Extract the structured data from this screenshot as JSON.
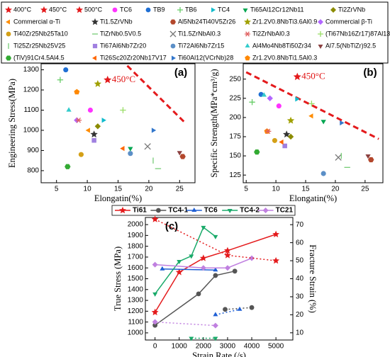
{
  "legend": [
    {
      "name": "400°C",
      "marker": "star",
      "color": "#e41a1c"
    },
    {
      "name": "450°C",
      "marker": "star",
      "color": "#e41a1c"
    },
    {
      "name": "500°C",
      "marker": "star",
      "color": "#e41a1c"
    },
    {
      "name": "TC6",
      "marker": "circle",
      "color": "#ff33ff"
    },
    {
      "name": "TB9",
      "marker": "circle",
      "color": "#1f6fd4"
    },
    {
      "name": "TB6",
      "marker": "plus",
      "color": "#66cc66"
    },
    {
      "name": "TC4",
      "marker": "tri-right",
      "color": "#11bbcc"
    },
    {
      "name": "Ti65Al12Cr12Nb11",
      "marker": "tri-down",
      "color": "#00a650"
    },
    {
      "name": "Ti2ZrVNb",
      "marker": "diamond",
      "color": "#8b8b00"
    },
    {
      "name": "Commercial α-Ti",
      "marker": "tri-left",
      "color": "#ff8c00"
    },
    {
      "name": "Ti1.5ZrVNb",
      "marker": "star",
      "color": "#333333"
    },
    {
      "name": "Al5Nb24Ti40V5Zr26",
      "marker": "hexagon",
      "color": "#b3472c"
    },
    {
      "name": "Zr1.2V0.8NbTi3.6Al0.9",
      "marker": "star",
      "color": "#a0a000"
    },
    {
      "name": "Commercial β-Ti",
      "marker": "diamond",
      "color": "#b266ff"
    },
    {
      "name": "Ti40Zr25Nb25Ta10",
      "marker": "circle",
      "color": "#d4a017"
    },
    {
      "name": "TiZrNb0.5V0.5",
      "marker": "hline",
      "color": "#77cc77"
    },
    {
      "name": "Ti1.5ZrNbAl0.3",
      "marker": "x",
      "color": "#777777"
    },
    {
      "name": "Ti2ZrNbAl0.3",
      "marker": "asterisk",
      "color": "#e06060"
    },
    {
      "name": "(Ti67Nb16Zr17)87Al13",
      "marker": "plus",
      "color": "#99dd66"
    },
    {
      "name": "Ti25Zr25Nb25V25",
      "marker": "pipe",
      "color": "#77cc77"
    },
    {
      "name": "Ti67Al6Nb7Zr20",
      "marker": "square",
      "color": "#a080e0"
    },
    {
      "name": "Ti72Al6Nb7Zr15",
      "marker": "circle",
      "color": "#5b8fc7"
    },
    {
      "name": "Al4Mo4Nb8Ti50Zr34",
      "marker": "tri-up",
      "color": "#33cccc"
    },
    {
      "name": "Al7.5(NbTiZr)92.5",
      "marker": "tri-down",
      "color": "#8b4040"
    },
    {
      "name": "(TiV)91Cr4.5Al4.5",
      "marker": "hexagon",
      "color": "#33aa33"
    },
    {
      "name": "Ti26Sc20Zr20Nb17V17",
      "marker": "tri-left",
      "color": "#ff6600"
    },
    {
      "name": "Ti60Al12(VCrNb)28",
      "marker": "tri-right",
      "color": "#3377cc"
    },
    {
      "name": "Zr1.2V0.8NbTi1.5Al0.3",
      "marker": "pentagon",
      "color": "#ff8800"
    }
  ],
  "chart_data": [
    {
      "type": "scatter",
      "label": "(a)",
      "x_label": "Elongatin(%)",
      "y_label": "Engineering Stress(MPa)",
      "xlim": [
        2.5,
        27.5
      ],
      "xticks": [
        5,
        10,
        15,
        20,
        25
      ],
      "ylim": [
        740,
        1330
      ],
      "yticks": [
        800,
        900,
        1000,
        1100,
        1200,
        1300
      ],
      "annotation": {
        "text": "450°C",
        "x": 13.3,
        "y": 1250,
        "marker": "star",
        "color": "#e41a1c"
      },
      "trend": {
        "x": [
          16.5,
          25.8
        ],
        "y": [
          1320,
          1040
        ],
        "color": "#e41a1c"
      },
      "points": [
        {
          "x": 6.5,
          "y": 1300,
          "marker": "circle",
          "color": "#1f6fd4"
        },
        {
          "x": 5.6,
          "y": 1250,
          "marker": "plus",
          "color": "#66cc66"
        },
        {
          "x": 11.7,
          "y": 1230,
          "marker": "star",
          "color": "#a0a000"
        },
        {
          "x": 8.3,
          "y": 1190,
          "marker": "pentagon",
          "color": "#ff8800"
        },
        {
          "x": 7,
          "y": 1100,
          "marker": "tri-up",
          "color": "#33cccc"
        },
        {
          "x": 10.5,
          "y": 1100,
          "marker": "circle",
          "color": "#ff33ff"
        },
        {
          "x": 15.8,
          "y": 1100,
          "marker": "plus",
          "color": "#99dd66"
        },
        {
          "x": 12.6,
          "y": 1050,
          "marker": "tri-right",
          "color": "#11bbcc"
        },
        {
          "x": 8.3,
          "y": 1050,
          "marker": "diamond",
          "color": "#b266ff"
        },
        {
          "x": 8.6,
          "y": 1050,
          "marker": "asterisk",
          "color": "#e06060"
        },
        {
          "x": 10.2,
          "y": 1000,
          "marker": "tri-left",
          "color": "#ff8c00"
        },
        {
          "x": 11.7,
          "y": 1020,
          "marker": "diamond",
          "color": "#8b8b00"
        },
        {
          "x": 11.1,
          "y": 980,
          "marker": "star",
          "color": "#333333"
        },
        {
          "x": 11.1,
          "y": 950,
          "marker": "square",
          "color": "#a080e0"
        },
        {
          "x": 20.7,
          "y": 1000,
          "marker": "tri-right",
          "color": "#3377cc"
        },
        {
          "x": 19.8,
          "y": 920,
          "marker": "x",
          "color": "#777777"
        },
        {
          "x": 9,
          "y": 880,
          "marker": "circle",
          "color": "#d4a017"
        },
        {
          "x": 15.8,
          "y": 910,
          "marker": "tri-left",
          "color": "#ff6600"
        },
        {
          "x": 17,
          "y": 910,
          "marker": "tri-down",
          "color": "#00a650"
        },
        {
          "x": 17,
          "y": 885,
          "marker": "circle",
          "color": "#5b8fc7"
        },
        {
          "x": 20.7,
          "y": 850,
          "marker": "pipe",
          "color": "#77cc77"
        },
        {
          "x": 21.5,
          "y": 810,
          "marker": "hline",
          "color": "#77cc77"
        },
        {
          "x": 25,
          "y": 890,
          "marker": "tri-down",
          "color": "#8b4040"
        },
        {
          "x": 25.5,
          "y": 870,
          "marker": "hexagon",
          "color": "#b3472c"
        },
        {
          "x": 6.8,
          "y": 820,
          "marker": "hexagon",
          "color": "#33aa33"
        }
      ]
    },
    {
      "type": "scatter",
      "label": "(b)",
      "x_label": "Elongatin(%)",
      "y_label": "Specific Strength(MPa*cm³/g)",
      "xlim": [
        4.5,
        28
      ],
      "xticks": [
        5,
        10,
        15,
        20,
        25
      ],
      "ylim": [
        115,
        270
      ],
      "yticks": [
        125,
        150,
        175,
        200,
        225,
        250
      ],
      "annotation": {
        "text": "450°C",
        "x": 13.6,
        "y": 253,
        "marker": "star",
        "color": "#e41a1c"
      },
      "trend": {
        "x": [
          5,
          27.3
        ],
        "y": [
          259,
          172
        ],
        "color": "#e41a1c"
      },
      "points": [
        {
          "x": 7.5,
          "y": 230,
          "marker": "circle",
          "color": "#1f6fd4"
        },
        {
          "x": 8,
          "y": 229,
          "marker": "tri-up",
          "color": "#33cccc"
        },
        {
          "x": 9,
          "y": 225,
          "marker": "diamond",
          "color": "#b266ff"
        },
        {
          "x": 10.5,
          "y": 215,
          "marker": "circle",
          "color": "#ff33ff"
        },
        {
          "x": 13.5,
          "y": 224,
          "marker": "tri-right",
          "color": "#11bbcc"
        },
        {
          "x": 6,
          "y": 220,
          "marker": "plus",
          "color": "#66cc66"
        },
        {
          "x": 16,
          "y": 218,
          "marker": "plus",
          "color": "#99dd66"
        },
        {
          "x": 18,
          "y": 195,
          "marker": "tri-down",
          "color": "#00a650"
        },
        {
          "x": 16,
          "y": 202,
          "marker": "tri-left",
          "color": "#ff8c00"
        },
        {
          "x": 21,
          "y": 193,
          "marker": "tri-right",
          "color": "#3377cc"
        },
        {
          "x": 12.5,
          "y": 196,
          "marker": "star",
          "color": "#a0a000"
        },
        {
          "x": 11.8,
          "y": 178,
          "marker": "star",
          "color": "#333333"
        },
        {
          "x": 8.5,
          "y": 182,
          "marker": "pentagon",
          "color": "#ff8800"
        },
        {
          "x": 8.7,
          "y": 182,
          "marker": "asterisk",
          "color": "#e06060"
        },
        {
          "x": 12.5,
          "y": 175,
          "marker": "diamond",
          "color": "#8b8b00"
        },
        {
          "x": 9.8,
          "y": 170,
          "marker": "circle",
          "color": "#d4a017"
        },
        {
          "x": 11.5,
          "y": 163,
          "marker": "square",
          "color": "#a080e0"
        },
        {
          "x": 11,
          "y": 168,
          "marker": "tri-left",
          "color": "#ff6600"
        },
        {
          "x": 6.8,
          "y": 155,
          "marker": "hexagon",
          "color": "#33aa33"
        },
        {
          "x": 20.5,
          "y": 148,
          "marker": "x",
          "color": "#777777"
        },
        {
          "x": 21,
          "y": 150,
          "marker": "pipe",
          "color": "#77cc77"
        },
        {
          "x": 22,
          "y": 135,
          "marker": "hline",
          "color": "#77cc77"
        },
        {
          "x": 25.5,
          "y": 150,
          "marker": "tri-down",
          "color": "#8b4040"
        },
        {
          "x": 26,
          "y": 145,
          "marker": "hexagon",
          "color": "#b3472c"
        },
        {
          "x": 18,
          "y": 127,
          "marker": "circle",
          "color": "#5b8fc7"
        }
      ]
    },
    {
      "type": "line",
      "label": "(c)",
      "x_label": "Strain Rate (/s)",
      "y_label": "True Stress (MPa)",
      "y2_label": "Fracture Strain (%)",
      "xlim": [
        -400,
        5700
      ],
      "xticks": [
        0,
        1000,
        2000,
        3000,
        4000,
        5000
      ],
      "ylim": [
        934,
        2066
      ],
      "yticks": [
        1000,
        1100,
        1200,
        1300,
        1400,
        1500,
        1600,
        1700,
        1800,
        1900,
        2000
      ],
      "y2lim": [
        6,
        74
      ],
      "y2ticks": [
        10,
        20,
        30,
        40,
        50,
        60,
        70
      ],
      "series": [
        {
          "name": "Ti61",
          "color": "#e41a1c",
          "marker": "star",
          "linestyle": "solid",
          "x": [
            0,
            1000,
            2000,
            3000,
            5000
          ],
          "values": [
            1190,
            1560,
            1690,
            1760,
            1910
          ]
        },
        {
          "name": "TC4-1",
          "color": "#555555",
          "marker": "circle",
          "linestyle": "solid",
          "x": [
            0,
            1800,
            2500,
            3300
          ],
          "values": [
            1070,
            1360,
            1530,
            1570
          ]
        },
        {
          "name": "TC6",
          "color": "#1f5fd4",
          "marker": "tri-up",
          "linestyle": "solid",
          "x": [
            300,
            2500
          ],
          "values": [
            1590,
            1580
          ]
        },
        {
          "name": "TC4-2",
          "color": "#1aaa6a",
          "marker": "tri-down",
          "linestyle": "solid",
          "x": [
            0,
            1000,
            1500,
            2000,
            2500
          ],
          "values": [
            1360,
            1660,
            1710,
            1975,
            1890
          ]
        },
        {
          "name": "TC21",
          "color": "#c080e0",
          "marker": "diamond",
          "linestyle": "solid",
          "x": [
            0,
            2000,
            3000,
            4000
          ],
          "values": [
            1630,
            1600,
            1600,
            1690
          ]
        },
        {
          "color": "#e41a1c",
          "marker": "star",
          "linestyle": "dotted",
          "axis": "y2",
          "x": [
            0,
            3000,
            5000
          ],
          "values": [
            73,
            53,
            50
          ]
        },
        {
          "color": "#555555",
          "marker": "circle",
          "linestyle": "dotted",
          "axis": "y2",
          "x": [
            2900,
            4000
          ],
          "values": [
            23,
            24
          ]
        },
        {
          "color": "#1f5fd4",
          "marker": "tri-up",
          "linestyle": "dotted",
          "axis": "y2",
          "x": [
            2500,
            3500
          ],
          "values": [
            20,
            23
          ]
        },
        {
          "color": "#1aaa6a",
          "marker": "tri-down",
          "linestyle": "dotted",
          "axis": "y2",
          "x": [
            1500,
            2500
          ],
          "values": [
            7,
            7
          ]
        },
        {
          "color": "#c080e0",
          "marker": "diamond",
          "linestyle": "dotted",
          "axis": "y2",
          "x": [
            0,
            2500
          ],
          "values": [
            16,
            14
          ]
        }
      ]
    }
  ]
}
